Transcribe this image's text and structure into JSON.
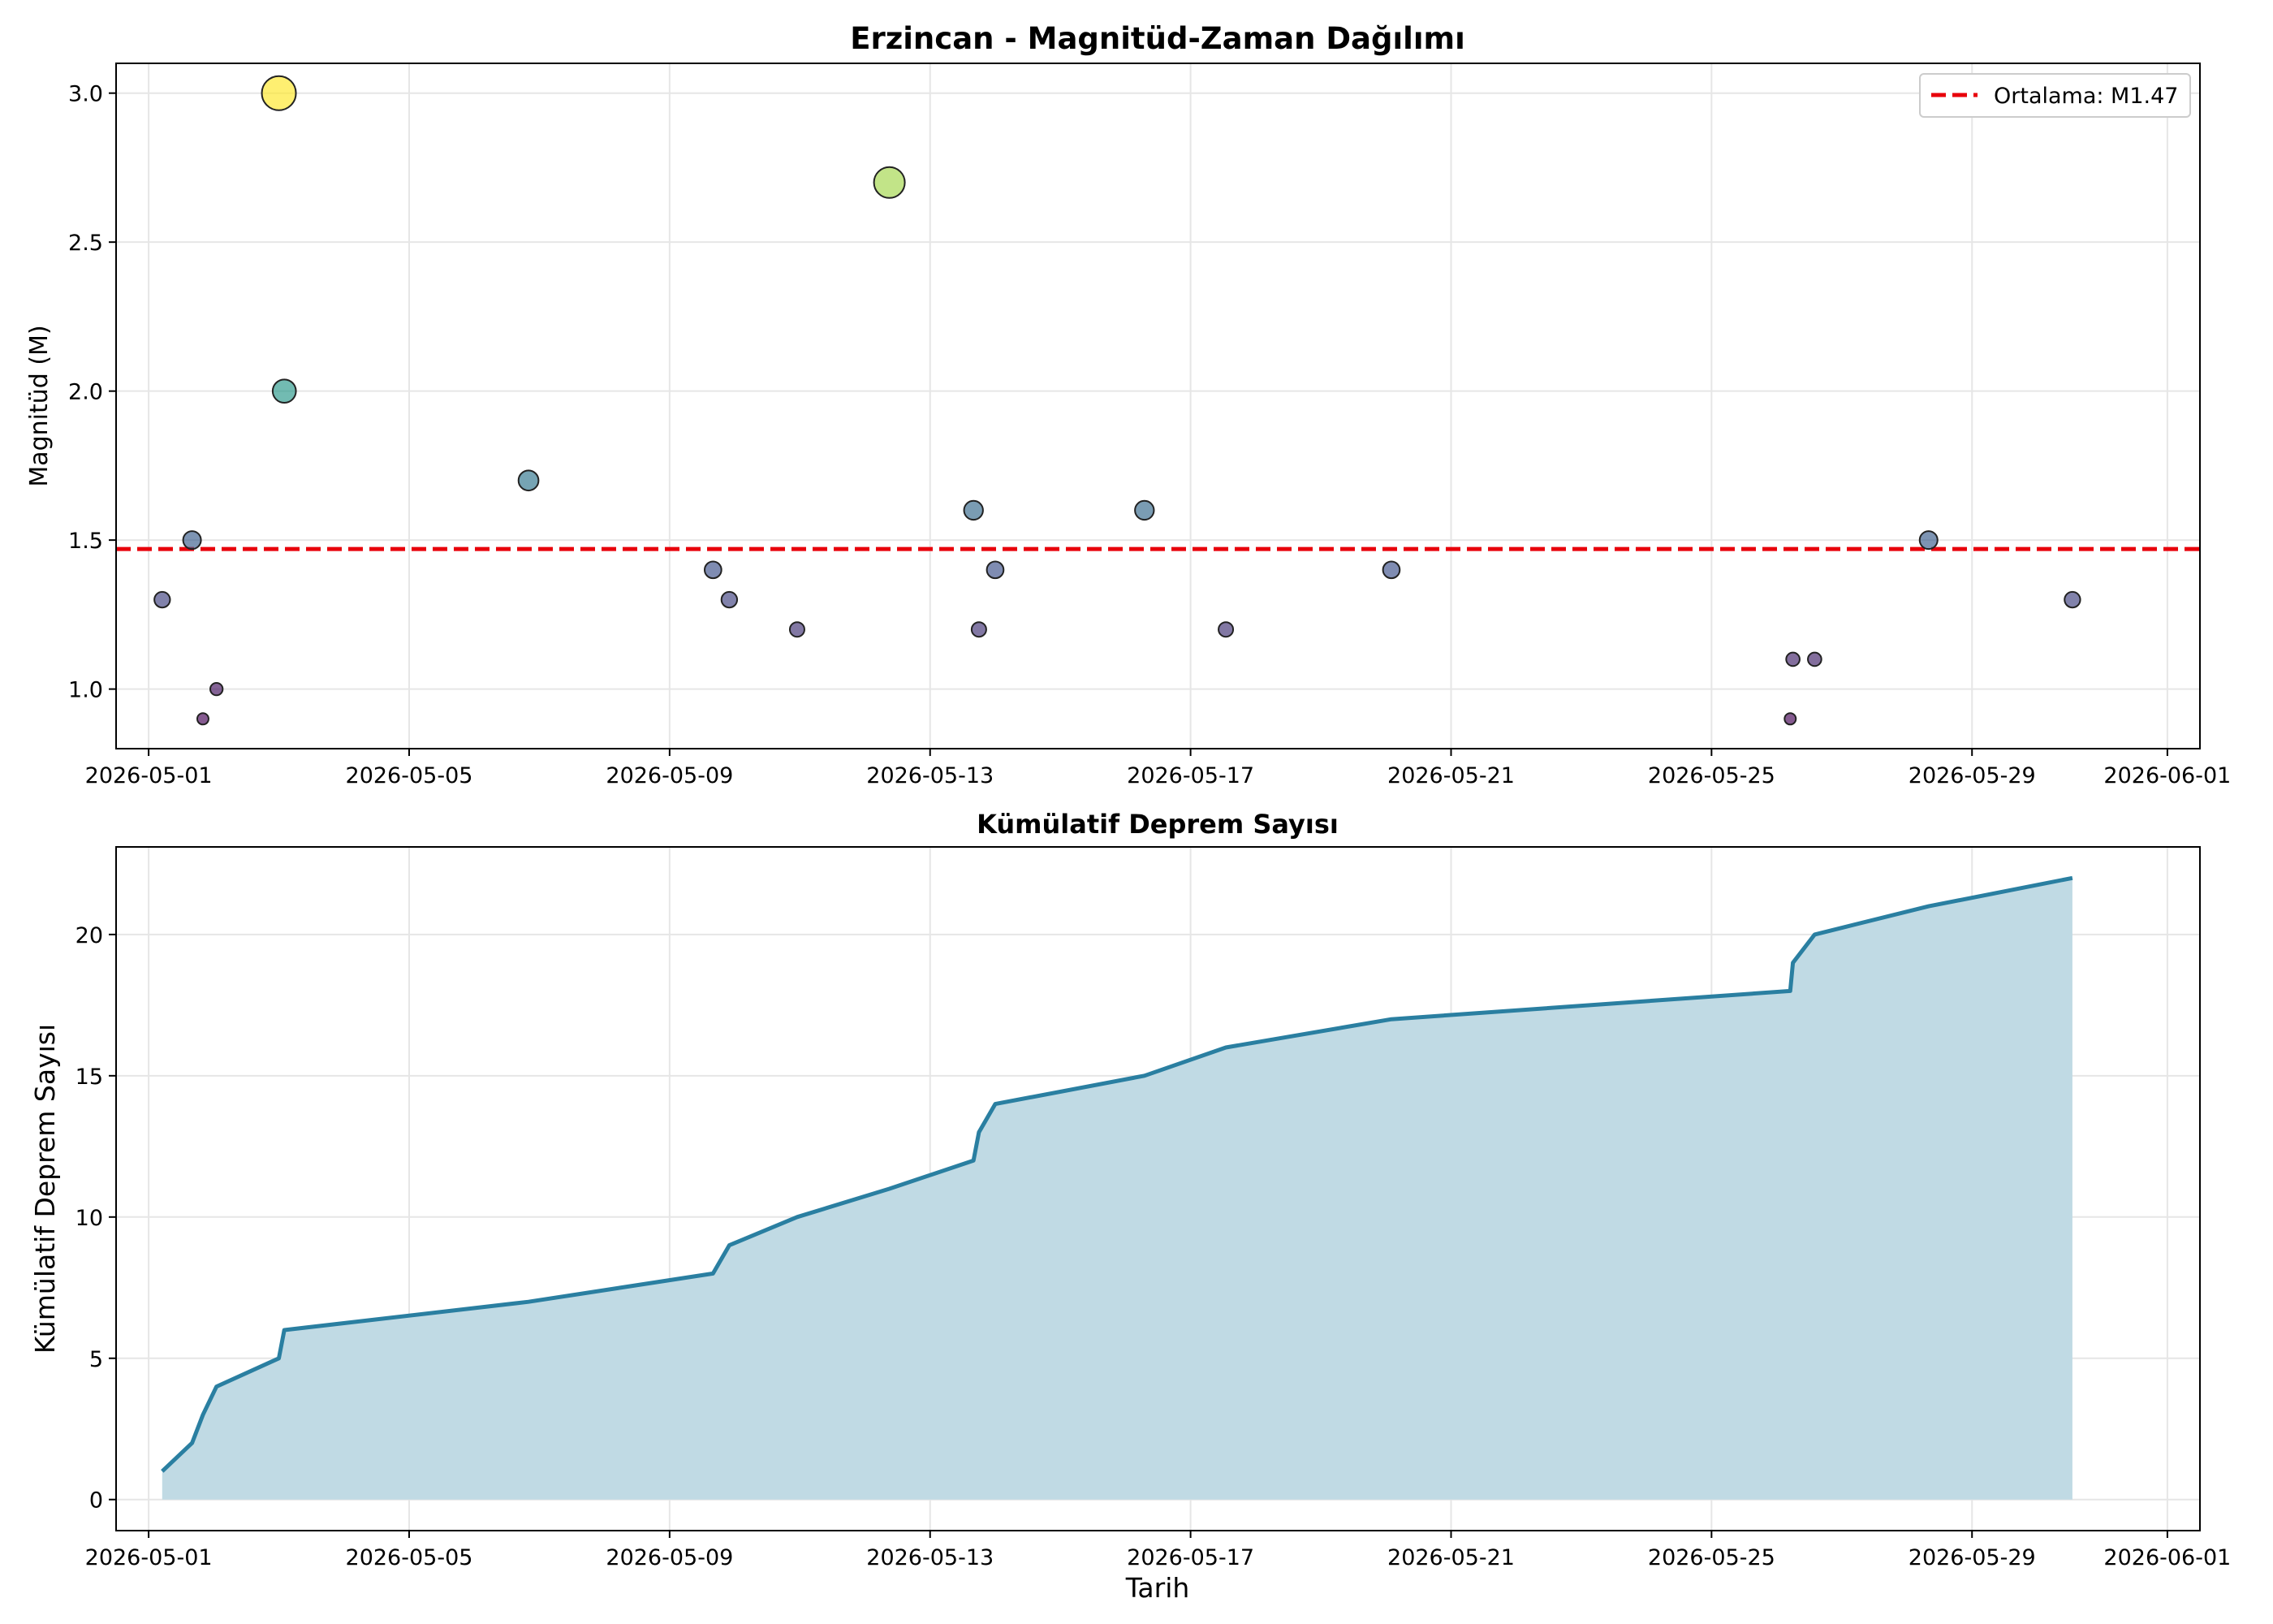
{
  "chart_data": [
    {
      "type": "scatter",
      "title": "Erzincan - Magnitüd-Zaman Dağılımı",
      "xlabel": "",
      "ylabel": "Magnitüd (M)",
      "x_axis_type": "date",
      "xlim": [
        "2026-04-30T12:00",
        "2026-06-01T12:00"
      ],
      "ylim": [
        0.8,
        3.1
      ],
      "x_ticks": [
        "2026-05-01",
        "2026-05-05",
        "2026-05-09",
        "2026-05-13",
        "2026-05-17",
        "2026-05-21",
        "2026-05-25",
        "2026-05-29",
        "2026-06-01"
      ],
      "y_ticks": [
        1.0,
        1.5,
        2.0,
        2.5,
        3.0
      ],
      "y_tick_labels": [
        "1.0",
        "1.5",
        "2.0",
        "2.5",
        "3.0"
      ],
      "grid": true,
      "legend": {
        "position": "top-right",
        "entries": [
          "Ortalama: M1.47"
        ]
      },
      "mean_line": {
        "value": 1.47,
        "color": "#e8000b",
        "style": "dashed"
      },
      "colormap": "viridis",
      "series": [
        {
          "points": [
            {
              "x": "2026-05-01T05:00",
              "y": 1.3
            },
            {
              "x": "2026-05-01T16:00",
              "y": 1.5
            },
            {
              "x": "2026-05-01T20:00",
              "y": 0.9
            },
            {
              "x": "2026-05-02T01:00",
              "y": 1.0
            },
            {
              "x": "2026-05-03T00:00",
              "y": 3.0
            },
            {
              "x": "2026-05-03T02:00",
              "y": 2.0
            },
            {
              "x": "2026-05-06T20:00",
              "y": 1.7
            },
            {
              "x": "2026-05-09T16:00",
              "y": 1.4
            },
            {
              "x": "2026-05-09T22:00",
              "y": 1.3
            },
            {
              "x": "2026-05-10T23:00",
              "y": 1.2
            },
            {
              "x": "2026-05-12T09:00",
              "y": 2.7
            },
            {
              "x": "2026-05-13T16:00",
              "y": 1.6
            },
            {
              "x": "2026-05-13T18:00",
              "y": 1.2
            },
            {
              "x": "2026-05-14T00:00",
              "y": 1.4
            },
            {
              "x": "2026-05-16T07:00",
              "y": 1.6
            },
            {
              "x": "2026-05-17T13:00",
              "y": 1.2
            },
            {
              "x": "2026-05-20T02:00",
              "y": 1.4
            },
            {
              "x": "2026-05-26T05:00",
              "y": 0.9
            },
            {
              "x": "2026-05-26T06:00",
              "y": 1.1
            },
            {
              "x": "2026-05-26T14:00",
              "y": 1.1
            },
            {
              "x": "2026-05-28T08:00",
              "y": 1.5
            },
            {
              "x": "2026-05-30T13:00",
              "y": 1.3
            }
          ]
        }
      ]
    },
    {
      "type": "area",
      "title": "Kümülatif Deprem Sayısı",
      "xlabel": "Tarih",
      "ylabel": "Kümülatif Deprem Sayısı",
      "x_axis_type": "date",
      "xlim": [
        "2026-04-30T12:00",
        "2026-06-01T12:00"
      ],
      "ylim": [
        -1.1,
        23.1
      ],
      "x_ticks": [
        "2026-05-01",
        "2026-05-05",
        "2026-05-09",
        "2026-05-13",
        "2026-05-17",
        "2026-05-21",
        "2026-05-25",
        "2026-05-29",
        "2026-06-01"
      ],
      "y_ticks": [
        0,
        5,
        10,
        15,
        20
      ],
      "y_tick_labels": [
        "0",
        "5",
        "10",
        "15",
        "20"
      ],
      "grid": true,
      "line_color": "#2a7fa1",
      "fill_color": "#c0dae4",
      "series": [
        {
          "points": [
            {
              "x": "2026-05-01T05:00",
              "y": 1
            },
            {
              "x": "2026-05-01T16:00",
              "y": 2
            },
            {
              "x": "2026-05-01T20:00",
              "y": 3
            },
            {
              "x": "2026-05-02T01:00",
              "y": 4
            },
            {
              "x": "2026-05-03T00:00",
              "y": 5
            },
            {
              "x": "2026-05-03T02:00",
              "y": 6
            },
            {
              "x": "2026-05-06T20:00",
              "y": 7
            },
            {
              "x": "2026-05-09T16:00",
              "y": 8
            },
            {
              "x": "2026-05-09T22:00",
              "y": 9
            },
            {
              "x": "2026-05-10T23:00",
              "y": 10
            },
            {
              "x": "2026-05-12T09:00",
              "y": 11
            },
            {
              "x": "2026-05-13T16:00",
              "y": 12
            },
            {
              "x": "2026-05-13T18:00",
              "y": 13
            },
            {
              "x": "2026-05-14T00:00",
              "y": 14
            },
            {
              "x": "2026-05-16T07:00",
              "y": 15
            },
            {
              "x": "2026-05-17T13:00",
              "y": 16
            },
            {
              "x": "2026-05-20T02:00",
              "y": 17
            },
            {
              "x": "2026-05-26T05:00",
              "y": 18
            },
            {
              "x": "2026-05-26T06:00",
              "y": 19
            },
            {
              "x": "2026-05-26T14:00",
              "y": 20
            },
            {
              "x": "2026-05-28T08:00",
              "y": 21
            },
            {
              "x": "2026-05-30T13:00",
              "y": 22
            }
          ]
        }
      ]
    }
  ]
}
